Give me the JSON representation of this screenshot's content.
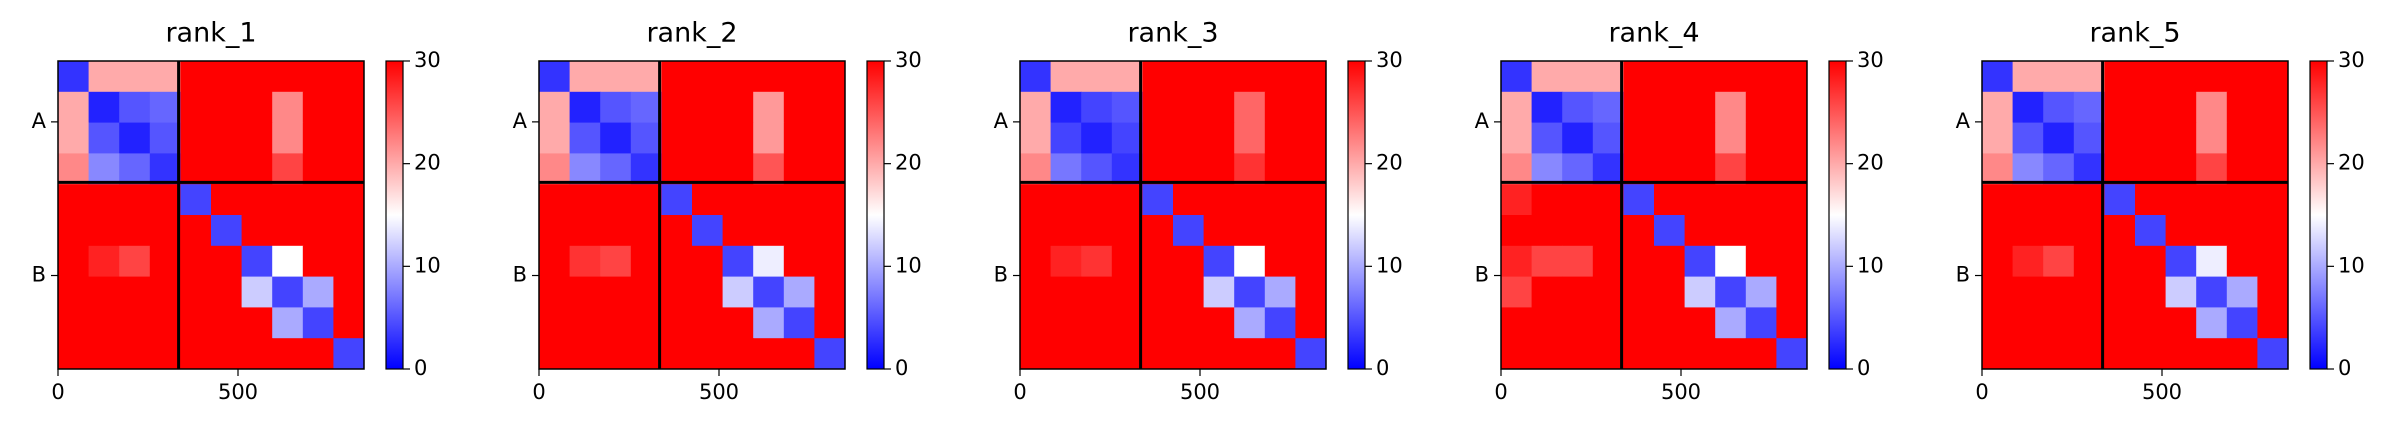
{
  "chart_data": [
    {
      "type": "heatmap",
      "title": "rank_1",
      "xlim": [
        0,
        850
      ],
      "ylim": [
        850,
        0
      ],
      "xticks": [
        0,
        500
      ],
      "yticks": [
        {
          "value": 168,
          "label": "A"
        },
        {
          "value": 592,
          "label": "B"
        }
      ],
      "chain_breaks": [
        335
      ],
      "colormap": "bwr",
      "clim": [
        0,
        30
      ],
      "cticks": [
        0,
        10,
        20,
        30
      ],
      "z": [
        [
          3,
          20,
          20,
          20,
          30,
          30,
          30,
          30,
          30,
          30
        ],
        [
          20,
          2,
          5,
          6,
          30,
          30,
          30,
          22,
          30,
          30
        ],
        [
          20,
          5,
          2,
          5,
          30,
          30,
          30,
          22,
          30,
          30
        ],
        [
          22,
          8,
          6,
          3,
          30,
          30,
          30,
          26,
          30,
          30
        ],
        [
          30,
          30,
          30,
          30,
          4,
          30,
          30,
          30,
          30,
          30
        ],
        [
          30,
          30,
          30,
          30,
          30,
          4,
          30,
          30,
          30,
          30
        ],
        [
          30,
          28,
          26,
          30,
          30,
          30,
          4,
          15,
          30,
          30
        ],
        [
          30,
          30,
          30,
          30,
          30,
          30,
          12,
          4,
          10,
          30
        ],
        [
          30,
          30,
          30,
          30,
          30,
          30,
          30,
          10,
          4,
          30
        ],
        [
          30,
          30,
          30,
          30,
          30,
          30,
          30,
          30,
          30,
          4
        ]
      ]
    },
    {
      "type": "heatmap",
      "title": "rank_2",
      "xlim": [
        0,
        850
      ],
      "ylim": [
        850,
        0
      ],
      "xticks": [
        0,
        500
      ],
      "yticks": [
        {
          "value": 168,
          "label": "A"
        },
        {
          "value": 592,
          "label": "B"
        }
      ],
      "chain_breaks": [
        335
      ],
      "colormap": "bwr",
      "clim": [
        0,
        30
      ],
      "cticks": [
        0,
        10,
        20,
        30
      ],
      "z": [
        [
          3,
          20,
          20,
          20,
          30,
          30,
          30,
          30,
          30,
          30
        ],
        [
          20,
          2,
          5,
          6,
          30,
          30,
          30,
          21,
          30,
          30
        ],
        [
          20,
          5,
          2,
          5,
          30,
          30,
          30,
          21,
          30,
          30
        ],
        [
          22,
          8,
          6,
          3,
          30,
          30,
          30,
          25,
          30,
          30
        ],
        [
          30,
          30,
          30,
          30,
          4,
          30,
          30,
          30,
          30,
          30
        ],
        [
          30,
          30,
          30,
          30,
          30,
          4,
          30,
          30,
          30,
          30
        ],
        [
          30,
          27,
          26,
          30,
          30,
          30,
          4,
          14,
          30,
          30
        ],
        [
          30,
          30,
          30,
          30,
          30,
          30,
          12,
          4,
          10,
          30
        ],
        [
          30,
          30,
          30,
          30,
          30,
          30,
          30,
          10,
          4,
          30
        ],
        [
          30,
          30,
          30,
          30,
          30,
          30,
          30,
          30,
          30,
          4
        ]
      ]
    },
    {
      "type": "heatmap",
      "title": "rank_3",
      "xlim": [
        0,
        850
      ],
      "ylim": [
        850,
        0
      ],
      "xticks": [
        0,
        500
      ],
      "yticks": [
        {
          "value": 168,
          "label": "A"
        },
        {
          "value": 592,
          "label": "B"
        }
      ],
      "chain_breaks": [
        335
      ],
      "colormap": "bwr",
      "clim": [
        0,
        30
      ],
      "cticks": [
        0,
        10,
        20,
        30
      ],
      "z": [
        [
          3,
          20,
          20,
          20,
          30,
          30,
          30,
          30,
          30,
          30
        ],
        [
          20,
          2,
          4,
          5,
          30,
          30,
          30,
          24,
          30,
          30
        ],
        [
          20,
          4,
          2,
          4,
          30,
          30,
          30,
          24,
          30,
          30
        ],
        [
          22,
          7,
          5,
          3,
          30,
          30,
          30,
          27,
          30,
          30
        ],
        [
          30,
          30,
          30,
          30,
          4,
          30,
          30,
          30,
          30,
          30
        ],
        [
          30,
          30,
          30,
          30,
          30,
          4,
          30,
          30,
          30,
          30
        ],
        [
          30,
          28,
          27,
          30,
          30,
          30,
          4,
          15,
          30,
          30
        ],
        [
          30,
          30,
          30,
          30,
          30,
          30,
          12,
          4,
          10,
          30
        ],
        [
          30,
          30,
          30,
          30,
          30,
          30,
          30,
          10,
          4,
          30
        ],
        [
          30,
          30,
          30,
          30,
          30,
          30,
          30,
          30,
          30,
          4
        ]
      ]
    },
    {
      "type": "heatmap",
      "title": "rank_4",
      "xlim": [
        0,
        850
      ],
      "ylim": [
        850,
        0
      ],
      "xticks": [
        0,
        500
      ],
      "yticks": [
        {
          "value": 168,
          "label": "A"
        },
        {
          "value": 592,
          "label": "B"
        }
      ],
      "chain_breaks": [
        335
      ],
      "colormap": "bwr",
      "clim": [
        0,
        30
      ],
      "cticks": [
        0,
        10,
        20,
        30
      ],
      "z": [
        [
          3,
          20,
          20,
          20,
          30,
          30,
          30,
          30,
          30,
          30
        ],
        [
          20,
          2,
          5,
          6,
          30,
          30,
          30,
          22,
          30,
          30
        ],
        [
          20,
          5,
          2,
          5,
          30,
          30,
          30,
          22,
          30,
          30
        ],
        [
          22,
          8,
          6,
          3,
          30,
          30,
          30,
          26,
          30,
          30
        ],
        [
          28,
          30,
          30,
          30,
          4,
          30,
          30,
          30,
          30,
          30
        ],
        [
          30,
          30,
          30,
          30,
          30,
          4,
          30,
          30,
          30,
          30
        ],
        [
          28,
          26,
          26,
          30,
          30,
          30,
          4,
          15,
          30,
          30
        ],
        [
          26,
          30,
          30,
          30,
          30,
          30,
          12,
          4,
          10,
          30
        ],
        [
          30,
          30,
          30,
          30,
          30,
          30,
          30,
          10,
          4,
          30
        ],
        [
          30,
          30,
          30,
          30,
          30,
          30,
          30,
          30,
          30,
          4
        ]
      ]
    },
    {
      "type": "heatmap",
      "title": "rank_5",
      "xlim": [
        0,
        850
      ],
      "ylim": [
        850,
        0
      ],
      "xticks": [
        0,
        500
      ],
      "yticks": [
        {
          "value": 168,
          "label": "A"
        },
        {
          "value": 592,
          "label": "B"
        }
      ],
      "chain_breaks": [
        335
      ],
      "colormap": "bwr",
      "clim": [
        0,
        30
      ],
      "cticks": [
        0,
        10,
        20,
        30
      ],
      "z": [
        [
          3,
          20,
          20,
          20,
          30,
          30,
          30,
          30,
          30,
          30
        ],
        [
          20,
          2,
          5,
          6,
          30,
          30,
          30,
          22,
          30,
          30
        ],
        [
          20,
          5,
          2,
          5,
          30,
          30,
          30,
          22,
          30,
          30
        ],
        [
          22,
          8,
          6,
          3,
          30,
          30,
          30,
          26,
          30,
          30
        ],
        [
          30,
          30,
          30,
          30,
          4,
          30,
          30,
          30,
          30,
          30
        ],
        [
          30,
          30,
          30,
          30,
          30,
          4,
          30,
          30,
          30,
          30
        ],
        [
          30,
          28,
          26,
          30,
          30,
          30,
          4,
          14,
          30,
          30
        ],
        [
          30,
          30,
          30,
          30,
          30,
          30,
          12,
          4,
          10,
          30
        ],
        [
          30,
          30,
          30,
          30,
          30,
          30,
          30,
          10,
          4,
          30
        ],
        [
          30,
          30,
          30,
          30,
          30,
          30,
          30,
          30,
          30,
          4
        ]
      ]
    }
  ]
}
